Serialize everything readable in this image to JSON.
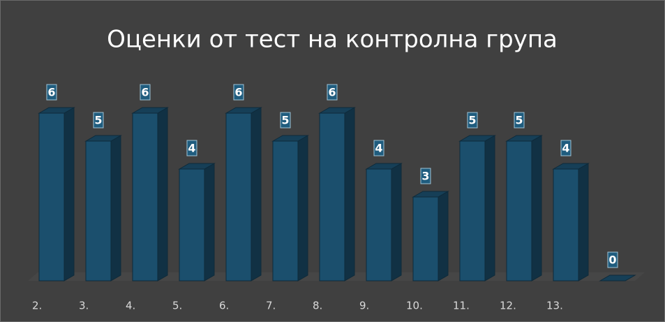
{
  "chart_data": {
    "type": "bar3d",
    "title": "Оценки от тест на контролна група",
    "categories": [
      "2.",
      "3.",
      "4.",
      "5.",
      "6.",
      "7.",
      "8.",
      "9.",
      "10.",
      "11.",
      "12.",
      "13.",
      null
    ],
    "values": [
      6,
      5,
      6,
      4,
      6,
      5,
      6,
      4,
      3,
      5,
      5,
      4,
      0
    ],
    "color": "#1b4f6d"
  }
}
